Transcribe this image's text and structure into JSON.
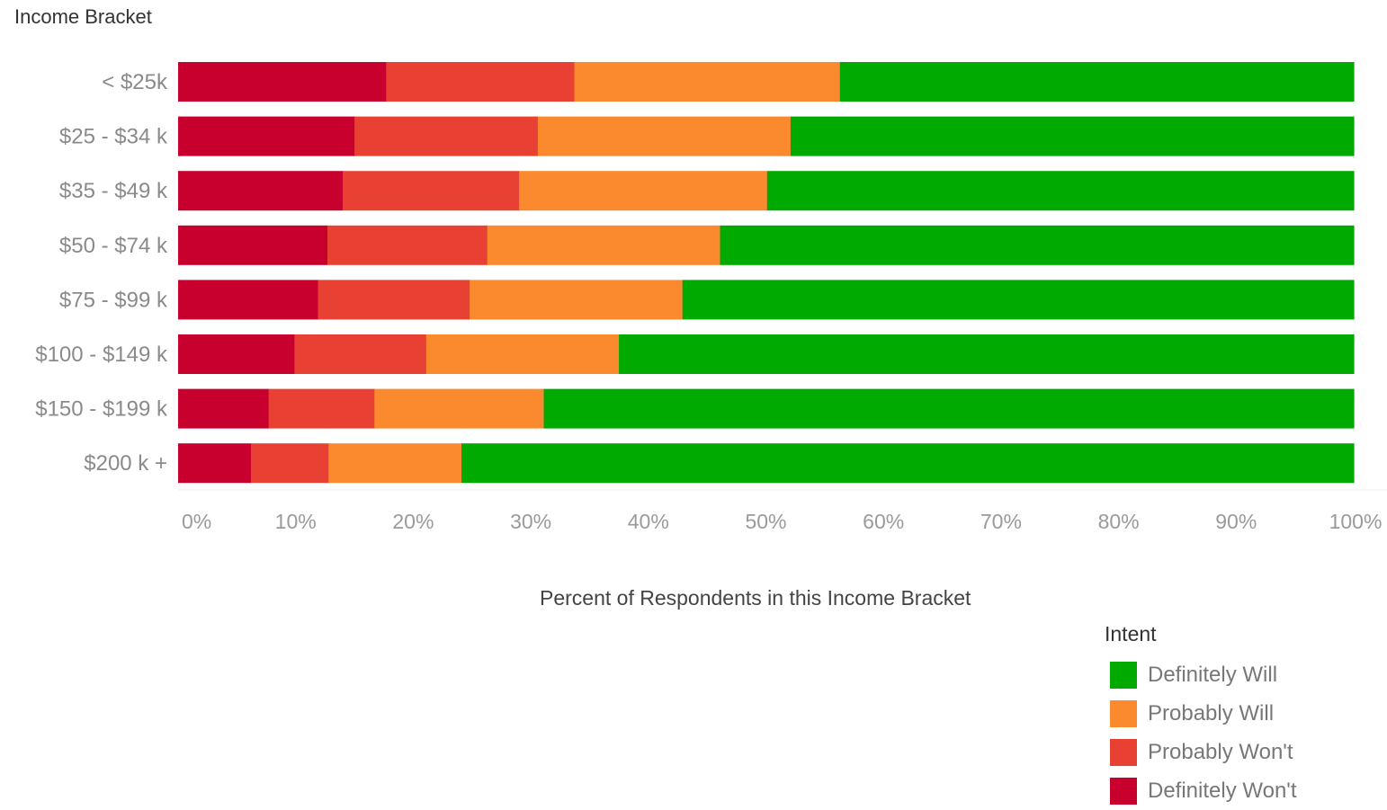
{
  "chart_data": {
    "type": "bar",
    "orientation": "horizontal",
    "stacked": true,
    "normalized": true,
    "ylabel": "Income Bracket",
    "xlabel": "Percent of Respondents in this Income Bracket",
    "xlim": [
      0,
      100
    ],
    "xticks": [
      "0%",
      "10%",
      "20%",
      "30%",
      "40%",
      "50%",
      "60%",
      "70%",
      "80%",
      "90%",
      "100%"
    ],
    "categories": [
      "< $25k",
      "$25 - $34 k",
      "$35 - $49 k",
      "$50 - $74 k",
      "$75 - $99 k",
      "$100 - $149 k",
      "$150 - $199 k",
      "$200 k +"
    ],
    "series": [
      {
        "name": "Definitely Won't",
        "color": "#c8002e",
        "values": [
          17.7,
          15.0,
          14.0,
          12.7,
          11.9,
          9.9,
          7.7,
          6.2
        ]
      },
      {
        "name": "Probably Won't",
        "color": "#e84133",
        "values": [
          16.0,
          15.6,
          15.0,
          13.6,
          12.9,
          11.2,
          9.0,
          6.6
        ]
      },
      {
        "name": "Probably Will",
        "color": "#fb8a2e",
        "values": [
          22.6,
          21.5,
          21.1,
          19.8,
          18.1,
          16.4,
          14.4,
          11.3
        ]
      },
      {
        "name": "Definitely Will",
        "color": "#00aa00",
        "values": [
          43.7,
          47.9,
          49.9,
          53.9,
          57.1,
          62.5,
          68.9,
          75.9
        ]
      }
    ],
    "legend": {
      "title": "Intent",
      "placement": "bottom-right",
      "order": [
        "Definitely Will",
        "Probably Will",
        "Probably Won't",
        "Definitely Won't"
      ]
    }
  }
}
